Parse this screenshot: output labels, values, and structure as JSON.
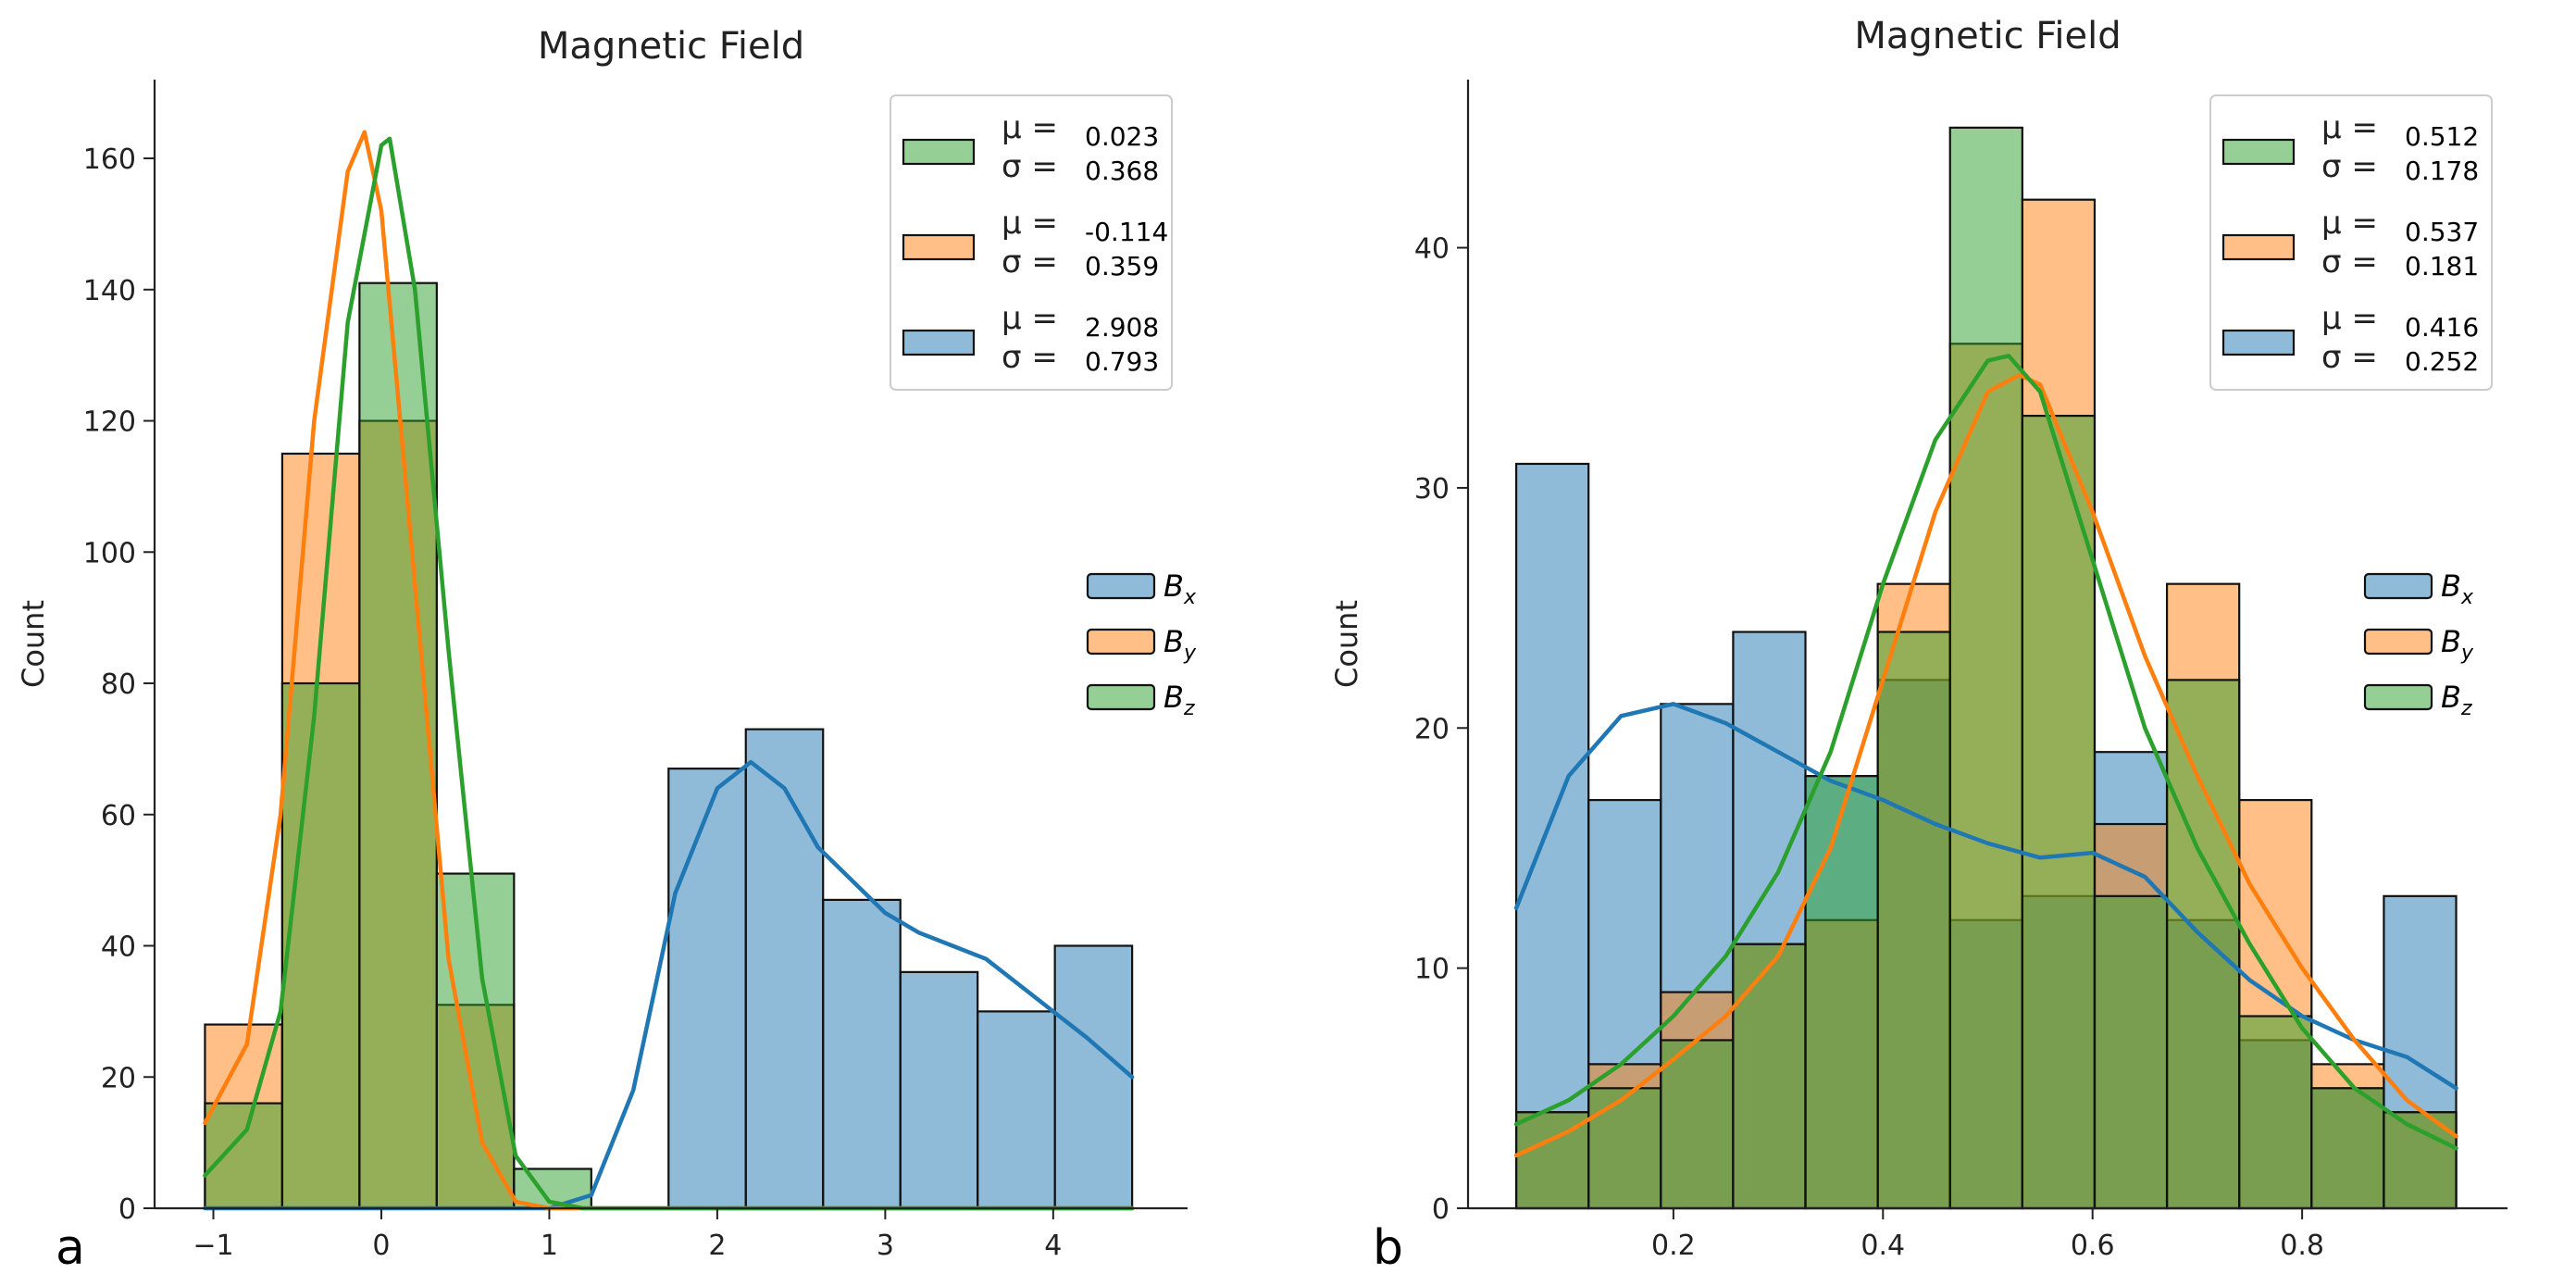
{
  "colors": {
    "bx": "#1f77b4",
    "by": "#ff7f0e",
    "bz": "#2ca02c",
    "bx_fill": "rgba(31,119,180,0.5)",
    "by_fill": "rgba(255,127,14,0.5)",
    "bz_fill": "rgba(44,160,44,0.5)"
  },
  "legend_symbols": {
    "mu": "μ =",
    "sigma": "σ ="
  },
  "chart_data": [
    {
      "type": "histogram",
      "panel_label": "a",
      "title": "Magnetic Field",
      "xlabel": "",
      "ylabel": "Count",
      "xlim": [
        -1.35,
        4.8
      ],
      "ylim": [
        0,
        172
      ],
      "xticks": [
        -1,
        0,
        1,
        2,
        3,
        4
      ],
      "xtick_labels": [
        "−1",
        "0",
        "1",
        "2",
        "3",
        "4"
      ],
      "yticks": [
        0,
        20,
        40,
        60,
        80,
        100,
        120,
        140,
        160
      ],
      "yticklabels": [
        "0",
        "20",
        "40",
        "60",
        "80",
        "100",
        "120",
        "140",
        "160"
      ],
      "grid": false,
      "series_legend": [
        {
          "key": "bx",
          "main": "B",
          "sub": "x"
        },
        {
          "key": "by",
          "main": "B",
          "sub": "y"
        },
        {
          "key": "bz",
          "main": "B",
          "sub": "z"
        }
      ],
      "stats_legend": [
        {
          "key": "bz",
          "mu": "0.023",
          "sigma": "0.368"
        },
        {
          "key": "by",
          "mu": "-0.114",
          "sigma": "0.359"
        },
        {
          "key": "bx",
          "mu": "2.908",
          "sigma": "0.793"
        }
      ],
      "series": [
        {
          "name": "Bx",
          "key": "bx",
          "bins": [
            -1.05,
            -0.59,
            -0.13,
            0.33,
            0.79,
            1.25,
            1.71,
            2.17,
            2.63,
            3.09,
            3.55,
            4.01,
            4.47
          ],
          "counts": [
            0,
            0,
            0,
            0,
            0,
            0,
            67,
            73,
            47,
            36,
            30,
            40
          ],
          "kde_x": [
            -1.05,
            1.0,
            1.25,
            1.5,
            1.75,
            2.0,
            2.2,
            2.4,
            2.6,
            2.8,
            3.0,
            3.2,
            3.4,
            3.6,
            3.8,
            4.0,
            4.2,
            4.47
          ],
          "kde_y": [
            0,
            0,
            2,
            18,
            48,
            64,
            68,
            64,
            55,
            50,
            45,
            42,
            40,
            38,
            34,
            30,
            26,
            20
          ]
        },
        {
          "name": "By",
          "key": "by",
          "bins": [
            -1.05,
            -0.59,
            -0.13,
            0.33,
            0.79,
            1.25,
            1.71,
            2.17,
            2.63,
            3.09,
            3.55,
            4.01,
            4.47
          ],
          "counts": [
            28,
            115,
            120,
            31,
            0,
            0,
            0,
            0,
            0,
            0,
            0,
            0
          ],
          "kde_x": [
            -1.05,
            -0.8,
            -0.6,
            -0.4,
            -0.2,
            -0.1,
            0.0,
            0.2,
            0.4,
            0.6,
            0.8,
            1.0,
            1.2,
            4.47
          ],
          "kde_y": [
            13,
            25,
            60,
            120,
            158,
            164,
            152,
            95,
            38,
            10,
            1,
            0,
            0,
            0
          ]
        },
        {
          "name": "Bz",
          "key": "bz",
          "bins": [
            -1.05,
            -0.59,
            -0.13,
            0.33,
            0.79,
            1.25,
            1.71,
            2.17,
            2.63,
            3.09,
            3.55,
            4.01,
            4.47
          ],
          "counts": [
            16,
            80,
            141,
            51,
            6,
            0,
            0,
            0,
            0,
            0,
            0,
            0
          ],
          "kde_x": [
            -1.05,
            -0.8,
            -0.6,
            -0.4,
            -0.2,
            0.0,
            0.05,
            0.2,
            0.4,
            0.6,
            0.8,
            1.0,
            1.2,
            4.47
          ],
          "kde_y": [
            5,
            12,
            30,
            75,
            135,
            162,
            163,
            140,
            85,
            35,
            8,
            1,
            0,
            0
          ]
        }
      ]
    },
    {
      "type": "histogram",
      "panel_label": "b",
      "title": "Magnetic Field",
      "xlabel": "",
      "ylabel": "Count",
      "xlim": [
        0.004,
        0.996
      ],
      "ylim": [
        0,
        47
      ],
      "xticks": [
        0.2,
        0.4,
        0.6,
        0.8
      ],
      "xtick_labels": [
        "0.2",
        "0.4",
        "0.6",
        "0.8"
      ],
      "yticks": [
        0,
        10,
        20,
        30,
        40
      ],
      "yticklabels": [
        "0",
        "10",
        "20",
        "30",
        "40"
      ],
      "grid": false,
      "series_legend": [
        {
          "key": "bx",
          "main": "B",
          "sub": "x"
        },
        {
          "key": "by",
          "main": "B",
          "sub": "y"
        },
        {
          "key": "bz",
          "main": "B",
          "sub": "z"
        }
      ],
      "stats_legend": [
        {
          "key": "bz",
          "mu": "0.512",
          "sigma": "0.178"
        },
        {
          "key": "by",
          "mu": "0.537",
          "sigma": "0.181"
        },
        {
          "key": "bx",
          "mu": "0.416",
          "sigma": "0.252"
        }
      ],
      "series": [
        {
          "name": "Bx",
          "key": "bx",
          "bins": [
            0.05,
            0.119,
            0.188,
            0.257,
            0.326,
            0.395,
            0.464,
            0.533,
            0.602,
            0.671,
            0.74,
            0.809,
            0.878,
            0.947
          ],
          "counts": [
            31,
            17,
            21,
            24,
            18,
            22,
            12,
            13,
            19,
            12,
            7,
            5,
            13
          ],
          "kde_x": [
            0.05,
            0.1,
            0.15,
            0.2,
            0.25,
            0.3,
            0.35,
            0.4,
            0.45,
            0.5,
            0.55,
            0.6,
            0.65,
            0.7,
            0.75,
            0.8,
            0.85,
            0.9,
            0.947
          ],
          "kde_y": [
            12.5,
            18,
            20.5,
            21,
            20.2,
            19,
            17.8,
            17,
            16,
            15.2,
            14.6,
            14.8,
            13.8,
            11.5,
            9.5,
            8,
            7,
            6.3,
            5
          ]
        },
        {
          "name": "By",
          "key": "by",
          "bins": [
            0.05,
            0.119,
            0.188,
            0.257,
            0.326,
            0.395,
            0.464,
            0.533,
            0.602,
            0.671,
            0.74,
            0.809,
            0.878,
            0.947
          ],
          "counts": [
            4,
            6,
            9,
            11,
            12,
            26,
            36,
            42,
            16,
            26,
            17,
            6,
            4
          ],
          "kde_x": [
            0.05,
            0.1,
            0.15,
            0.2,
            0.25,
            0.3,
            0.35,
            0.4,
            0.45,
            0.5,
            0.53,
            0.55,
            0.6,
            0.65,
            0.7,
            0.75,
            0.8,
            0.85,
            0.9,
            0.947
          ],
          "kde_y": [
            2.2,
            3.2,
            4.5,
            6.2,
            8,
            10.5,
            15,
            22,
            29,
            34,
            34.7,
            34.3,
            29,
            23,
            18,
            13.5,
            10,
            7,
            4.5,
            3
          ]
        },
        {
          "name": "Bz",
          "key": "bz",
          "bins": [
            0.05,
            0.119,
            0.188,
            0.257,
            0.326,
            0.395,
            0.464,
            0.533,
            0.602,
            0.671,
            0.74,
            0.809,
            0.878,
            0.947
          ],
          "counts": [
            4,
            5,
            7,
            11,
            18,
            24,
            45,
            33,
            13,
            22,
            8,
            5,
            4
          ],
          "kde_x": [
            0.05,
            0.1,
            0.15,
            0.2,
            0.25,
            0.3,
            0.35,
            0.4,
            0.45,
            0.5,
            0.52,
            0.55,
            0.6,
            0.65,
            0.7,
            0.75,
            0.8,
            0.85,
            0.9,
            0.947
          ],
          "kde_y": [
            3.5,
            4.5,
            6,
            8,
            10.5,
            14,
            19,
            26,
            32,
            35.3,
            35.5,
            34,
            27,
            20,
            15,
            11,
            7.5,
            5,
            3.5,
            2.5
          ]
        }
      ]
    }
  ]
}
